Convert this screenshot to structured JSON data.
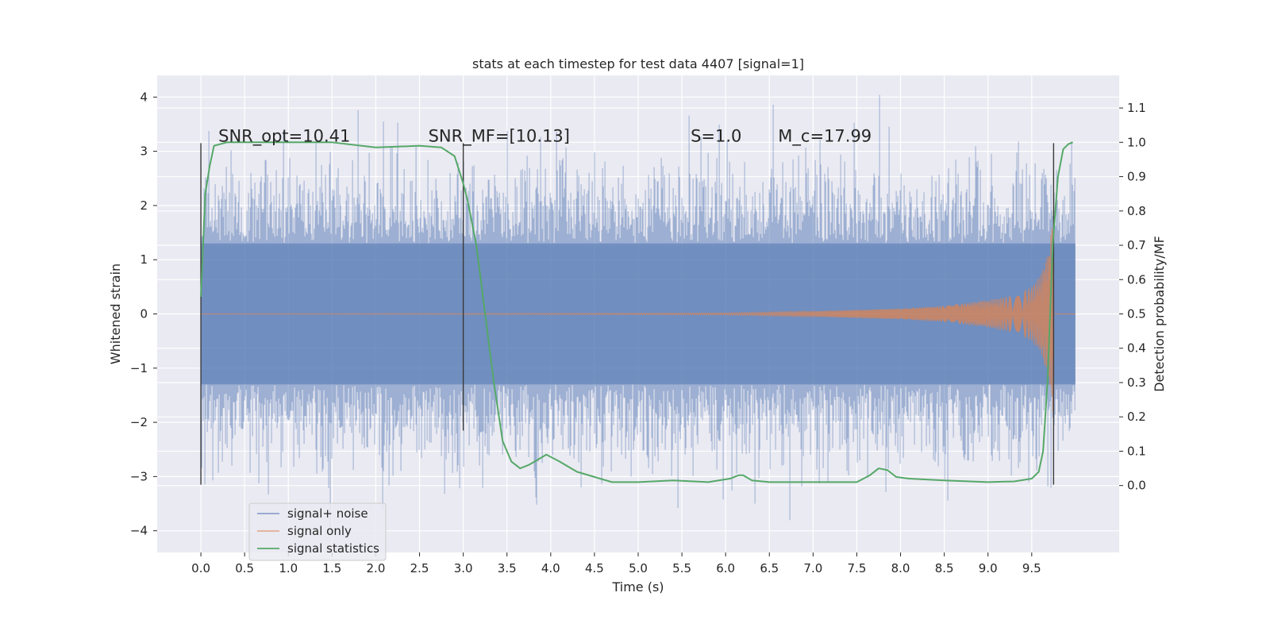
{
  "chart_data": {
    "type": "line",
    "title": "stats at each timestep for test data 4407 [signal=1]",
    "xlabel": "Time (s)",
    "ylabel_left": "Whitened strain",
    "ylabel_right": "Detection probability/MF",
    "xlim": [
      -0.5,
      10.5
    ],
    "ylim_left": [
      -4.4,
      4.4
    ],
    "ylim_right": [
      -0.195,
      1.195
    ],
    "xticks": [
      0.0,
      0.5,
      1.0,
      1.5,
      2.0,
      2.5,
      3.0,
      3.5,
      4.0,
      4.5,
      5.0,
      5.5,
      6.0,
      6.5,
      7.0,
      7.5,
      8.0,
      8.5,
      9.0,
      9.5
    ],
    "xtick_labels": [
      "0.0",
      "0.5",
      "1.0",
      "1.5",
      "2.0",
      "2.5",
      "3.0",
      "3.5",
      "4.0",
      "4.5",
      "5.0",
      "5.5",
      "6.0",
      "6.5",
      "7.0",
      "7.5",
      "8.0",
      "8.5",
      "9.0",
      "9.5"
    ],
    "yticks_left": [
      4,
      3,
      2,
      1,
      0,
      -1,
      -2,
      -3,
      -4
    ],
    "ytick_labels_left": [
      "4",
      "3",
      "2",
      "1",
      "0",
      "−1",
      "−2",
      "−3",
      "−4"
    ],
    "yticks_right": [
      1.1,
      1.0,
      0.9,
      0.8,
      0.7,
      0.6,
      0.5,
      0.4,
      0.3,
      0.2,
      0.1,
      0.0
    ],
    "ytick_labels_right": [
      "1.1",
      "1.0",
      "0.9",
      "0.8",
      "0.7",
      "0.6",
      "0.5",
      "0.4",
      "0.3",
      "0.2",
      "0.1",
      "0.0"
    ],
    "grid": true,
    "legend_position": "lower-left",
    "annotations": [
      {
        "x": 0.2,
        "y_right": 1.0,
        "text": "SNR_opt=10.41"
      },
      {
        "x": 2.6,
        "y_right": 1.0,
        "text": "SNR_MF=[10.13]"
      },
      {
        "x": 5.6,
        "y_right": 1.0,
        "text": "S=1.0"
      },
      {
        "x": 6.6,
        "y_right": 1.0,
        "text": "M_c=17.99"
      }
    ],
    "vertical_markers": [
      {
        "x": 0.0,
        "y_range": [
          -3.15,
          3.15
        ]
      },
      {
        "x": 3.0,
        "y_range": [
          -2.15,
          3.15
        ]
      },
      {
        "x": 9.75,
        "y_range": [
          -3.15,
          3.15
        ]
      }
    ],
    "series": [
      {
        "name": "signal+ noise",
        "axis": "left",
        "color": "#4c72b0",
        "kind": "noise_band",
        "x_range": [
          0.0,
          10.0
        ],
        "core_range": [
          -1.3,
          1.3
        ],
        "peak_range": [
          -4.05,
          4.05
        ]
      },
      {
        "name": "signal only",
        "axis": "left",
        "color": "#dd8452",
        "kind": "chirp",
        "x_range": [
          0.0,
          10.0
        ],
        "amplitude_envelope": {
          "x": [
            0.0,
            6.0,
            7.0,
            8.0,
            8.5,
            9.0,
            9.3,
            9.5,
            9.6,
            9.7,
            9.75
          ],
          "y": [
            0.0,
            0.02,
            0.05,
            0.1,
            0.15,
            0.25,
            0.35,
            0.5,
            0.7,
            1.2,
            2.0
          ]
        }
      },
      {
        "name": "signal statistics",
        "axis": "right",
        "color": "#55a868",
        "x": [
          0.0,
          0.05,
          0.1,
          0.15,
          0.3,
          0.5,
          1.0,
          1.5,
          2.0,
          2.5,
          2.75,
          2.9,
          3.0,
          3.05,
          3.15,
          3.25,
          3.35,
          3.45,
          3.55,
          3.65,
          3.75,
          3.85,
          3.95,
          4.1,
          4.3,
          4.5,
          4.7,
          5.0,
          5.4,
          5.8,
          6.05,
          6.15,
          6.2,
          6.3,
          6.5,
          7.0,
          7.5,
          7.65,
          7.75,
          7.85,
          7.95,
          8.1,
          8.5,
          9.0,
          9.3,
          9.5,
          9.58,
          9.63,
          9.68,
          9.74,
          9.8,
          9.86,
          9.92,
          9.97
        ],
        "y": [
          0.55,
          0.85,
          0.93,
          0.99,
          1.0,
          1.0,
          1.0,
          1.0,
          0.985,
          0.99,
          0.985,
          0.96,
          0.88,
          0.83,
          0.7,
          0.5,
          0.3,
          0.13,
          0.07,
          0.05,
          0.06,
          0.075,
          0.09,
          0.07,
          0.04,
          0.025,
          0.01,
          0.01,
          0.015,
          0.01,
          0.02,
          0.03,
          0.03,
          0.015,
          0.01,
          0.01,
          0.01,
          0.03,
          0.05,
          0.045,
          0.025,
          0.02,
          0.015,
          0.01,
          0.012,
          0.02,
          0.04,
          0.1,
          0.3,
          0.7,
          0.9,
          0.98,
          0.995,
          1.0
        ]
      }
    ]
  }
}
